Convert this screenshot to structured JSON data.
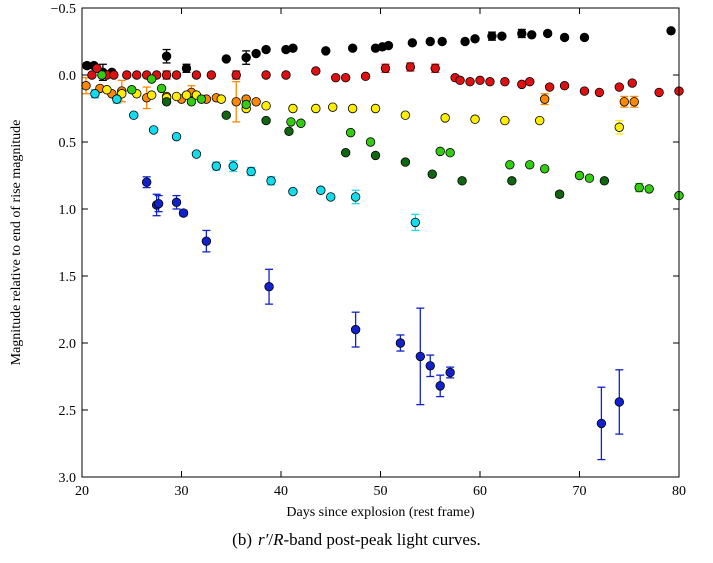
{
  "caption": {
    "label": "(b)",
    "band_r": "r′",
    "slash": "/",
    "band_R": "R",
    "rest": "-band post-peak light curves."
  },
  "chart_data": {
    "type": "scatter",
    "xlabel": "Days since explosion (rest frame)",
    "ylabel": "Magnitude relative to end of rise magnitude",
    "xlim": [
      20,
      80
    ],
    "ylim": [
      -0.5,
      3.0
    ],
    "y_inverted": true,
    "xticks": [
      20,
      30,
      40,
      50,
      60,
      70,
      80
    ],
    "yticks": [
      -0.5,
      0.0,
      0.5,
      1.0,
      1.5,
      2.0,
      2.5,
      3.0
    ],
    "xtick_labels": [
      "20",
      "30",
      "40",
      "50",
      "60",
      "70",
      "80"
    ],
    "ytick_labels": [
      "−0.5",
      "0.0",
      "0.5",
      "1.0",
      "1.5",
      "2.0",
      "2.5",
      "3.0"
    ],
    "grid": false,
    "series": [
      {
        "color": "#000000",
        "points": [
          [
            20.5,
            -0.07,
            0.02
          ],
          [
            21.2,
            -0.07,
            0
          ],
          [
            22.1,
            -0.02,
            0.06
          ],
          [
            23.0,
            -0.02,
            0
          ],
          [
            28.5,
            -0.14,
            0.05
          ],
          [
            30.5,
            -0.05,
            0.03
          ],
          [
            34.5,
            -0.12,
            0
          ],
          [
            36.5,
            -0.13,
            0.05
          ],
          [
            37.5,
            -0.16,
            0
          ],
          [
            38.5,
            -0.19,
            0
          ],
          [
            40.5,
            -0.19,
            0
          ],
          [
            41.2,
            -0.2,
            0
          ],
          [
            44.5,
            -0.18,
            0
          ],
          [
            47.2,
            -0.2,
            0
          ],
          [
            49.5,
            -0.2,
            0
          ],
          [
            50.2,
            -0.21,
            0
          ],
          [
            50.8,
            -0.22,
            0
          ],
          [
            53.2,
            -0.24,
            0
          ],
          [
            55.0,
            -0.25,
            0
          ],
          [
            56.2,
            -0.25,
            0
          ],
          [
            58.5,
            -0.25,
            0
          ],
          [
            59.5,
            -0.27,
            0
          ],
          [
            61.2,
            -0.29,
            0.03
          ],
          [
            62.2,
            -0.29,
            0
          ],
          [
            64.2,
            -0.31,
            0.03
          ],
          [
            65.2,
            -0.3,
            0
          ],
          [
            66.8,
            -0.31,
            0
          ],
          [
            68.5,
            -0.28,
            0
          ],
          [
            70.5,
            -0.28,
            0
          ],
          [
            79.2,
            -0.33,
            0
          ]
        ]
      },
      {
        "color": "#dd1111",
        "points": [
          [
            21.0,
            0.0,
            0
          ],
          [
            21.5,
            -0.05,
            0
          ],
          [
            22.5,
            0.0,
            0
          ],
          [
            23.2,
            0.0,
            0
          ],
          [
            24.5,
            0.0,
            0
          ],
          [
            25.5,
            0.0,
            0
          ],
          [
            26.5,
            0.0,
            0
          ],
          [
            27.5,
            0.0,
            0
          ],
          [
            28.5,
            0.0,
            0.03
          ],
          [
            29.5,
            0.0,
            0
          ],
          [
            31.5,
            0.0,
            0
          ],
          [
            33.0,
            0.0,
            0
          ],
          [
            35.5,
            0.0,
            0.03
          ],
          [
            38.5,
            0.0,
            0
          ],
          [
            40.5,
            0.0,
            0
          ],
          [
            43.5,
            -0.03,
            0
          ],
          [
            45.5,
            0.02,
            0
          ],
          [
            46.5,
            0.02,
            0
          ],
          [
            48.5,
            0.01,
            0
          ],
          [
            50.5,
            -0.05,
            0.03
          ],
          [
            53.0,
            -0.06,
            0.03
          ],
          [
            55.5,
            -0.05,
            0.03
          ],
          [
            57.5,
            0.02,
            0
          ],
          [
            58.0,
            0.04,
            0
          ],
          [
            59.0,
            0.05,
            0
          ],
          [
            60.0,
            0.04,
            0
          ],
          [
            61.0,
            0.05,
            0
          ],
          [
            62.5,
            0.05,
            0
          ],
          [
            64.2,
            0.07,
            0
          ],
          [
            65.0,
            0.05,
            0
          ],
          [
            67.0,
            0.09,
            0
          ],
          [
            68.5,
            0.08,
            0
          ],
          [
            70.5,
            0.12,
            0
          ],
          [
            72.0,
            0.13,
            0
          ],
          [
            74.0,
            0.09,
            0
          ],
          [
            75.3,
            0.06,
            0
          ],
          [
            78.0,
            0.13,
            0
          ],
          [
            80.0,
            0.12,
            0
          ]
        ]
      },
      {
        "color": "#ff8800",
        "points": [
          [
            20.4,
            0.08,
            0.06
          ],
          [
            21.8,
            0.1,
            0
          ],
          [
            23.0,
            0.14,
            0
          ],
          [
            24.0,
            0.12,
            0.08
          ],
          [
            26.5,
            0.17,
            0.08
          ],
          [
            28.5,
            0.16,
            0
          ],
          [
            30.0,
            0.18,
            0
          ],
          [
            31.0,
            0.13,
            0.05
          ],
          [
            32.5,
            0.18,
            0
          ],
          [
            33.5,
            0.17,
            0
          ],
          [
            35.5,
            0.2,
            0.15
          ],
          [
            36.5,
            0.18,
            0
          ],
          [
            37.5,
            0.2,
            0
          ],
          [
            66.5,
            0.18,
            0.04
          ],
          [
            74.5,
            0.2,
            0.04
          ],
          [
            75.5,
            0.2,
            0.04
          ]
        ]
      },
      {
        "color": "#ffee00",
        "points": [
          [
            22.5,
            0.11,
            0
          ],
          [
            24.0,
            0.14,
            0
          ],
          [
            25.5,
            0.14,
            0
          ],
          [
            27.0,
            0.15,
            0
          ],
          [
            28.5,
            0.17,
            0
          ],
          [
            29.5,
            0.16,
            0
          ],
          [
            30.5,
            0.15,
            0
          ],
          [
            31.5,
            0.15,
            0
          ],
          [
            34.0,
            0.18,
            0
          ],
          [
            36.5,
            0.25,
            0
          ],
          [
            38.5,
            0.23,
            0
          ],
          [
            41.2,
            0.25,
            0
          ],
          [
            43.5,
            0.25,
            0
          ],
          [
            45.2,
            0.24,
            0
          ],
          [
            47.2,
            0.25,
            0
          ],
          [
            49.5,
            0.25,
            0
          ],
          [
            52.5,
            0.3,
            0
          ],
          [
            56.5,
            0.32,
            0
          ],
          [
            59.5,
            0.33,
            0
          ],
          [
            62.5,
            0.34,
            0
          ],
          [
            66.0,
            0.34,
            0
          ],
          [
            74.0,
            0.39,
            0.05
          ]
        ]
      },
      {
        "color": "#33cc11",
        "points": [
          [
            22.0,
            0.0,
            0
          ],
          [
            25.0,
            0.11,
            0
          ],
          [
            27.0,
            0.03,
            0
          ],
          [
            28.0,
            0.1,
            0
          ],
          [
            31.0,
            0.2,
            0
          ],
          [
            32.0,
            0.18,
            0
          ],
          [
            36.5,
            0.22,
            0
          ],
          [
            41.0,
            0.35,
            0
          ],
          [
            42.0,
            0.36,
            0
          ],
          [
            47.0,
            0.43,
            0
          ],
          [
            49.0,
            0.5,
            0
          ],
          [
            56.0,
            0.57,
            0
          ],
          [
            57.0,
            0.58,
            0
          ],
          [
            63.0,
            0.67,
            0
          ],
          [
            65.0,
            0.67,
            0
          ],
          [
            66.5,
            0.7,
            0
          ],
          [
            70.0,
            0.75,
            0
          ],
          [
            71.0,
            0.77,
            0
          ],
          [
            76.0,
            0.84,
            0.03
          ],
          [
            77.0,
            0.85,
            0
          ],
          [
            80.0,
            0.9,
            0
          ]
        ]
      },
      {
        "color": "#116611",
        "points": [
          [
            28.5,
            0.2,
            0
          ],
          [
            34.5,
            0.3,
            0
          ],
          [
            38.5,
            0.34,
            0
          ],
          [
            40.8,
            0.42,
            0
          ],
          [
            46.5,
            0.58,
            0
          ],
          [
            49.5,
            0.6,
            0
          ],
          [
            52.5,
            0.65,
            0
          ],
          [
            55.2,
            0.74,
            0
          ],
          [
            58.2,
            0.79,
            0
          ],
          [
            63.2,
            0.79,
            0
          ],
          [
            68.0,
            0.89,
            0.02
          ],
          [
            72.5,
            0.79,
            0
          ]
        ]
      },
      {
        "color": "#11ddee",
        "points": [
          [
            21.3,
            0.14,
            0.03
          ],
          [
            23.5,
            0.18,
            0.03
          ],
          [
            25.2,
            0.3,
            0
          ],
          [
            27.2,
            0.41,
            0
          ],
          [
            29.5,
            0.46,
            0
          ],
          [
            31.5,
            0.59,
            0
          ],
          [
            33.5,
            0.68,
            0.03
          ],
          [
            35.2,
            0.68,
            0.04
          ],
          [
            37.0,
            0.72,
            0.03
          ],
          [
            39.0,
            0.79,
            0.03
          ],
          [
            41.2,
            0.87,
            0
          ],
          [
            44.0,
            0.86,
            0
          ],
          [
            45.0,
            0.91,
            0
          ],
          [
            47.5,
            0.91,
            0.05
          ],
          [
            53.5,
            1.1,
            0.06
          ]
        ]
      },
      {
        "color": "#1122cc",
        "points": [
          [
            26.5,
            0.8,
            0.04
          ],
          [
            27.5,
            0.97,
            0.08
          ],
          [
            27.7,
            0.96,
            0.06
          ],
          [
            29.5,
            0.95,
            0.05
          ],
          [
            30.2,
            1.03,
            0.02
          ],
          [
            32.5,
            1.24,
            0.08
          ],
          [
            38.8,
            1.58,
            0.13
          ],
          [
            47.5,
            1.9,
            0.13
          ],
          [
            52.0,
            2.0,
            0.06
          ],
          [
            54.0,
            2.1,
            0.36
          ],
          [
            55.0,
            2.17,
            0.08
          ],
          [
            56.0,
            2.32,
            0.08
          ],
          [
            57.0,
            2.22,
            0.04
          ],
          [
            72.2,
            2.6,
            0.27
          ],
          [
            74.0,
            2.44,
            0.24
          ]
        ]
      }
    ]
  }
}
